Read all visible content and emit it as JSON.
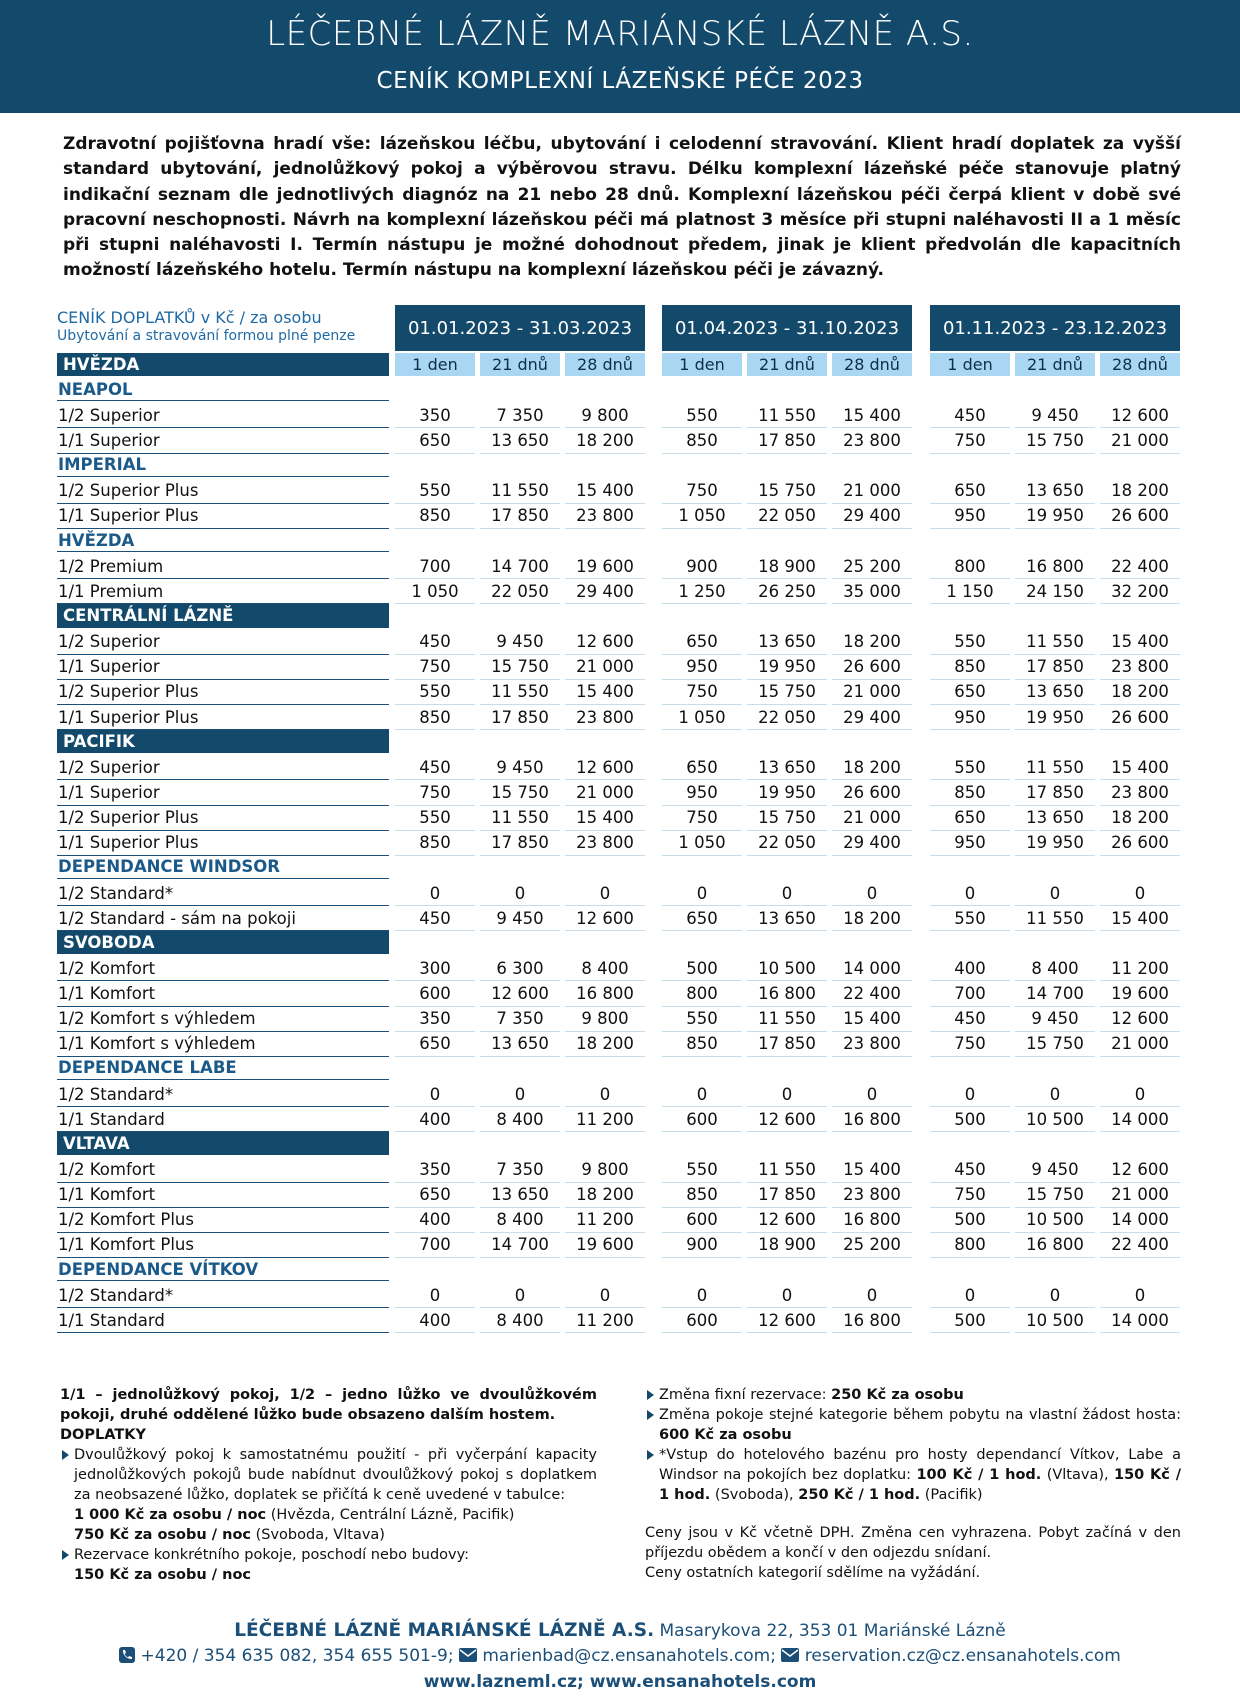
{
  "header": {
    "title": "LÉČEBNÉ LÁZNĚ MARIÁNSKÉ LÁZNĚ A.S.",
    "subtitle": "CENÍK KOMPLEXNÍ LÁZEŇSKÉ PÉČE 2023"
  },
  "intro": "Zdravotní pojišťovna hradí vše: lázeňskou léčbu, ubytování i celodenní stravování. Klient hradí doplatek za vyšší standard ubytování, jednolůžkový pokoj a výběrovou stravu. Délku komplexní lázeňské péče stanovuje platný indikační seznam dle jednotlivých diagnóz na 21 nebo 28 dnů. Komplexní lázeňskou péči čerpá klient v době své pracovní neschopnosti. Návrh na komplexní lázeňskou péči má platnost 3 měsíce při stupni naléhavosti II a 1 měsíc při stupni naléhavosti I. Termín nástupu je možné dohodnout předem, jinak je klient předvolán dle kapacitních možností lázeňského hotelu. Termín nástupu na komplexní lázeňskou péči je závazný.",
  "table": {
    "label_title": "CENÍK DOPLATKŮ v Kč / za osobu",
    "label_subtitle": "Ubytování a stravování formou plné penze",
    "periods": [
      "01.01.2023 - 31.03.2023",
      "01.04.2023 - 31.10.2023",
      "01.11.2023 - 23.12.2023"
    ],
    "day_columns": [
      "1 den",
      "21 dnů",
      "28 dnů"
    ],
    "top_heading": "HVĚZDA",
    "sections": [
      {
        "name": "NEAPOL",
        "style": "light",
        "rows": [
          {
            "label": "1/2 Superior",
            "values": [
              "350",
              "7 350",
              "9 800",
              "550",
              "11 550",
              "15 400",
              "450",
              "9 450",
              "12 600"
            ]
          },
          {
            "label": "1/1 Superior",
            "values": [
              "650",
              "13 650",
              "18 200",
              "850",
              "17 850",
              "23 800",
              "750",
              "15 750",
              "21 000"
            ]
          }
        ]
      },
      {
        "name": "IMPERIAL",
        "style": "light",
        "rows": [
          {
            "label": "1/2 Superior Plus",
            "values": [
              "550",
              "11 550",
              "15 400",
              "750",
              "15 750",
              "21 000",
              "650",
              "13 650",
              "18 200"
            ]
          },
          {
            "label": "1/1 Superior Plus",
            "values": [
              "850",
              "17 850",
              "23 800",
              "1 050",
              "22 050",
              "29 400",
              "950",
              "19 950",
              "26 600"
            ]
          }
        ]
      },
      {
        "name": "HVĚZDA",
        "style": "light",
        "rows": [
          {
            "label": "1/2 Premium",
            "values": [
              "700",
              "14 700",
              "19 600",
              "900",
              "18 900",
              "25 200",
              "800",
              "16 800",
              "22 400"
            ]
          },
          {
            "label": "1/1 Premium",
            "values": [
              "1 050",
              "22 050",
              "29 400",
              "1 250",
              "26 250",
              "35 000",
              "1 150",
              "24 150",
              "32 200"
            ]
          }
        ]
      },
      {
        "name": "CENTRÁLNÍ LÁZNĚ",
        "style": "dark",
        "rows": [
          {
            "label": "1/2 Superior",
            "values": [
              "450",
              "9 450",
              "12 600",
              "650",
              "13 650",
              "18 200",
              "550",
              "11 550",
              "15 400"
            ]
          },
          {
            "label": "1/1 Superior",
            "values": [
              "750",
              "15 750",
              "21 000",
              "950",
              "19 950",
              "26 600",
              "850",
              "17 850",
              "23 800"
            ]
          },
          {
            "label": "1/2 Superior Plus",
            "values": [
              "550",
              "11 550",
              "15 400",
              "750",
              "15 750",
              "21 000",
              "650",
              "13 650",
              "18 200"
            ]
          },
          {
            "label": "1/1 Superior Plus",
            "values": [
              "850",
              "17 850",
              "23 800",
              "1 050",
              "22 050",
              "29 400",
              "950",
              "19 950",
              "26 600"
            ]
          }
        ]
      },
      {
        "name": "PACIFIK",
        "style": "dark",
        "rows": [
          {
            "label": "1/2 Superior",
            "values": [
              "450",
              "9 450",
              "12 600",
              "650",
              "13 650",
              "18 200",
              "550",
              "11 550",
              "15 400"
            ]
          },
          {
            "label": "1/1 Superior",
            "values": [
              "750",
              "15 750",
              "21 000",
              "950",
              "19 950",
              "26 600",
              "850",
              "17 850",
              "23 800"
            ]
          },
          {
            "label": "1/2 Superior Plus",
            "values": [
              "550",
              "11 550",
              "15 400",
              "750",
              "15 750",
              "21 000",
              "650",
              "13 650",
              "18 200"
            ]
          },
          {
            "label": "1/1 Superior Plus",
            "values": [
              "850",
              "17 850",
              "23 800",
              "1 050",
              "22 050",
              "29 400",
              "950",
              "19 950",
              "26 600"
            ]
          }
        ]
      },
      {
        "name": "DEPENDANCE WINDSOR",
        "style": "light",
        "rows": [
          {
            "label": "1/2 Standard*",
            "values": [
              "0",
              "0",
              "0",
              "0",
              "0",
              "0",
              "0",
              "0",
              "0"
            ]
          },
          {
            "label": "1/2 Standard - sám na pokoji",
            "values": [
              "450",
              "9 450",
              "12 600",
              "650",
              "13 650",
              "18 200",
              "550",
              "11 550",
              "15 400"
            ]
          }
        ]
      },
      {
        "name": "SVOBODA",
        "style": "dark",
        "rows": [
          {
            "label": "1/2 Komfort",
            "values": [
              "300",
              "6 300",
              "8 400",
              "500",
              "10 500",
              "14 000",
              "400",
              "8 400",
              "11 200"
            ]
          },
          {
            "label": "1/1 Komfort",
            "values": [
              "600",
              "12 600",
              "16 800",
              "800",
              "16 800",
              "22 400",
              "700",
              "14 700",
              "19 600"
            ]
          },
          {
            "label": "1/2 Komfort s výhledem",
            "values": [
              "350",
              "7 350",
              "9 800",
              "550",
              "11 550",
              "15 400",
              "450",
              "9 450",
              "12 600"
            ]
          },
          {
            "label": "1/1 Komfort s výhledem",
            "values": [
              "650",
              "13 650",
              "18 200",
              "850",
              "17 850",
              "23 800",
              "750",
              "15 750",
              "21 000"
            ]
          }
        ]
      },
      {
        "name": "DEPENDANCE LABE",
        "style": "light",
        "rows": [
          {
            "label": "1/2 Standard*",
            "values": [
              "0",
              "0",
              "0",
              "0",
              "0",
              "0",
              "0",
              "0",
              "0"
            ]
          },
          {
            "label": "1/1 Standard",
            "values": [
              "400",
              "8 400",
              "11 200",
              "600",
              "12 600",
              "16 800",
              "500",
              "10 500",
              "14 000"
            ]
          }
        ]
      },
      {
        "name": "VLTAVA",
        "style": "dark",
        "rows": [
          {
            "label": "1/2 Komfort",
            "values": [
              "350",
              "7 350",
              "9 800",
              "550",
              "11 550",
              "15 400",
              "450",
              "9 450",
              "12 600"
            ]
          },
          {
            "label": "1/1 Komfort",
            "values": [
              "650",
              "13 650",
              "18 200",
              "850",
              "17 850",
              "23 800",
              "750",
              "15 750",
              "21 000"
            ]
          },
          {
            "label": "1/2 Komfort Plus",
            "values": [
              "400",
              "8 400",
              "11 200",
              "600",
              "12 600",
              "16 800",
              "500",
              "10 500",
              "14 000"
            ]
          },
          {
            "label": "1/1 Komfort Plus",
            "values": [
              "700",
              "14 700",
              "19 600",
              "900",
              "18 900",
              "25 200",
              "800",
              "16 800",
              "22 400"
            ]
          }
        ]
      },
      {
        "name": "DEPENDANCE VÍTKOV",
        "style": "light",
        "rows": [
          {
            "label": "1/2 Standard*",
            "values": [
              "0",
              "0",
              "0",
              "0",
              "0",
              "0",
              "0",
              "0",
              "0"
            ]
          },
          {
            "label": "1/1 Standard",
            "values": [
              "400",
              "8 400",
              "11 200",
              "600",
              "12 600",
              "16 800",
              "500",
              "10 500",
              "14 000"
            ]
          }
        ]
      }
    ]
  },
  "notes": {
    "left": [
      {
        "bullet": false,
        "lines": [
          [
            {
              "text": "1/1 – jednolůžkový pokoj, 1/2 – jedno lůžko ve dvoulůžkovém pokoji, druhé oddělené lůžko bude obsazeno dalším hostem.",
              "bold": true
            }
          ]
        ]
      },
      {
        "bullet": false,
        "lines": [
          [
            {
              "text": "DOPLATKY",
              "bold": true
            }
          ]
        ]
      },
      {
        "bullet": true,
        "lines": [
          [
            {
              "text": "Dvoulůžkový pokoj k samostatnému použití - při vyčerpání kapacity jednolůžkových pokojů bude nabídnut dvoulůžkový pokoj s doplatkem za neobsazené lůžko, doplatek se přičítá k ceně uvedené v tabulce:"
            }
          ],
          [
            {
              "text": "1 000 Kč za osobu / noc",
              "bold": true
            },
            {
              "text": " (Hvězda, Centrální Lázně, Pacifik)"
            }
          ],
          [
            {
              "text": "750 Kč za osobu / noc",
              "bold": true
            },
            {
              "text": " (Svoboda, Vltava)"
            }
          ]
        ]
      },
      {
        "bullet": true,
        "lines": [
          [
            {
              "text": "Rezervace konkrétního pokoje, poschodí nebo budovy:"
            }
          ],
          [
            {
              "text": "150 Kč za osobu / noc",
              "bold": true
            }
          ]
        ]
      }
    ],
    "right": [
      {
        "bullet": true,
        "lines": [
          [
            {
              "text": "Změna fixní rezervace: "
            },
            {
              "text": "250 Kč za osobu",
              "bold": true
            }
          ]
        ]
      },
      {
        "bullet": true,
        "lines": [
          [
            {
              "text": "Změna pokoje stejné kategorie během pobytu na vlastní žádost hosta: "
            },
            {
              "text": "600 Kč za osobu",
              "bold": true
            }
          ]
        ]
      },
      {
        "bullet": true,
        "lines": [
          [
            {
              "text": "*Vstup do hotelového bazénu pro hosty dependancí Vítkov, Labe a Windsor na pokojích bez doplatku: "
            },
            {
              "text": "100 Kč / 1 hod.",
              "bold": true
            },
            {
              "text": " (Vltava), "
            },
            {
              "text": "150 Kč / 1 hod.",
              "bold": true
            },
            {
              "text": " (Svoboda), "
            },
            {
              "text": "250 Kč / 1 hod.",
              "bold": true
            },
            {
              "text": " (Pacifik)"
            }
          ]
        ]
      },
      {
        "bullet": false,
        "gap": true,
        "lines": [
          [
            {
              "text": "Ceny jsou v Kč včetně DPH. Změna cen vyhrazena. Pobyt začíná v den příjezdu obědem a končí v den odjezdu snídaní."
            }
          ],
          [
            {
              "text": "Ceny ostatních kategorií sdělíme na vyžádání."
            }
          ]
        ]
      }
    ]
  },
  "footer": {
    "company": "LÉČEBNÉ LÁZNĚ MARIÁNSKÉ LÁZNĚ A.S.",
    "address": "Masarykova 22, 353 01 Mariánské Lázně",
    "phone": "+420 / 354 635 082, 354 655 501-9;",
    "email1": "marienbad@cz.ensanahotels.com;",
    "email2": "reservation.cz@cz.ensanahotels.com",
    "web": "www.lazneml.cz; www.ensanahotels.com"
  }
}
